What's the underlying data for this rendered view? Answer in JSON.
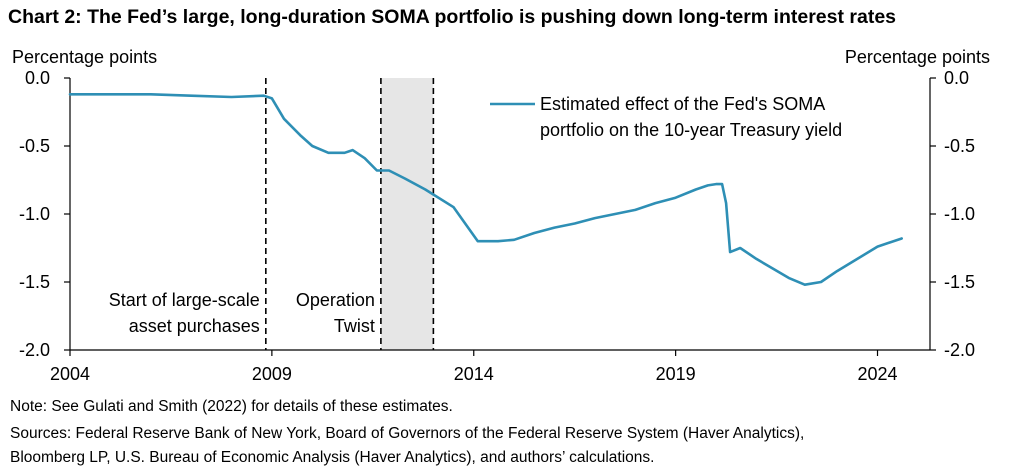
{
  "header": {
    "title": "Chart 2: The Fed’s large, long-duration SOMA portfolio is pushing down long-term interest rates",
    "y_unit_left": "Percentage points",
    "y_unit_right": "Percentage points"
  },
  "footer": {
    "note": "Note: See Gulati and Smith (2022) for details of these estimates.",
    "sources_line1": "Sources: Federal Reserve Bank of New York, Board of Governors of the Federal Reserve System (Haver Analytics),",
    "sources_line2": "Bloomberg LP, U.S. Bureau of Economic Analysis (Haver Analytics), and authors’ calculations."
  },
  "colors": {
    "series": "#2E8FB5",
    "shade": "#E6E6E6",
    "axis": "#000000"
  },
  "chart_data": {
    "type": "line",
    "xlim": [
      2004,
      2025.3
    ],
    "ylim": [
      -2.0,
      0.0
    ],
    "x_ticks": [
      2004,
      2009,
      2014,
      2019,
      2024
    ],
    "x_tick_labels": [
      "2004",
      "2009",
      "2014",
      "2019",
      "2024"
    ],
    "y_ticks": [
      0.0,
      -0.5,
      -1.0,
      -1.5,
      -2.0
    ],
    "y_tick_labels": [
      "0.0",
      "-0.5",
      "-1.0",
      "-1.5",
      "-2.0"
    ],
    "grid": false,
    "legend_position": "top-right",
    "series": [
      {
        "name": "Estimated effect of the Fed's SOMA portfolio on the 10-year Treasury yield",
        "name_line1": "Estimated effect of the Fed's SOMA",
        "name_line2": "portfolio on the 10-year Treasury yield",
        "points": [
          [
            2004.0,
            -0.12
          ],
          [
            2005.0,
            -0.12
          ],
          [
            2006.0,
            -0.12
          ],
          [
            2007.0,
            -0.13
          ],
          [
            2008.0,
            -0.14
          ],
          [
            2008.8,
            -0.13
          ],
          [
            2009.0,
            -0.15
          ],
          [
            2009.3,
            -0.3
          ],
          [
            2009.7,
            -0.42
          ],
          [
            2010.0,
            -0.5
          ],
          [
            2010.4,
            -0.55
          ],
          [
            2010.8,
            -0.55
          ],
          [
            2011.0,
            -0.53
          ],
          [
            2011.3,
            -0.59
          ],
          [
            2011.6,
            -0.68
          ],
          [
            2011.9,
            -0.68
          ],
          [
            2012.3,
            -0.74
          ],
          [
            2012.8,
            -0.82
          ],
          [
            2013.5,
            -0.95
          ],
          [
            2014.1,
            -1.2
          ],
          [
            2014.6,
            -1.2
          ],
          [
            2015.0,
            -1.19
          ],
          [
            2015.5,
            -1.14
          ],
          [
            2016.0,
            -1.1
          ],
          [
            2016.5,
            -1.07
          ],
          [
            2017.0,
            -1.03
          ],
          [
            2017.5,
            -1.0
          ],
          [
            2018.0,
            -0.97
          ],
          [
            2018.5,
            -0.92
          ],
          [
            2019.0,
            -0.88
          ],
          [
            2019.5,
            -0.82
          ],
          [
            2019.8,
            -0.79
          ],
          [
            2020.0,
            -0.78
          ],
          [
            2020.15,
            -0.78
          ],
          [
            2020.25,
            -0.92
          ],
          [
            2020.35,
            -1.28
          ],
          [
            2020.6,
            -1.25
          ],
          [
            2021.0,
            -1.33
          ],
          [
            2021.4,
            -1.4
          ],
          [
            2021.8,
            -1.47
          ],
          [
            2022.2,
            -1.52
          ],
          [
            2022.6,
            -1.5
          ],
          [
            2023.0,
            -1.42
          ],
          [
            2023.5,
            -1.33
          ],
          [
            2024.0,
            -1.24
          ],
          [
            2024.6,
            -1.18
          ]
        ]
      }
    ],
    "event_lines": [
      {
        "x": 2008.85,
        "label_line1": "Start of large-scale",
        "label_line2": "asset purchases"
      },
      {
        "x": 2011.7,
        "label_line1": "Operation",
        "label_line2": "Twist"
      },
      {
        "x": 2013.0
      }
    ],
    "shaded_ranges": [
      {
        "x_start": 2011.7,
        "x_end": 2013.0
      }
    ]
  }
}
